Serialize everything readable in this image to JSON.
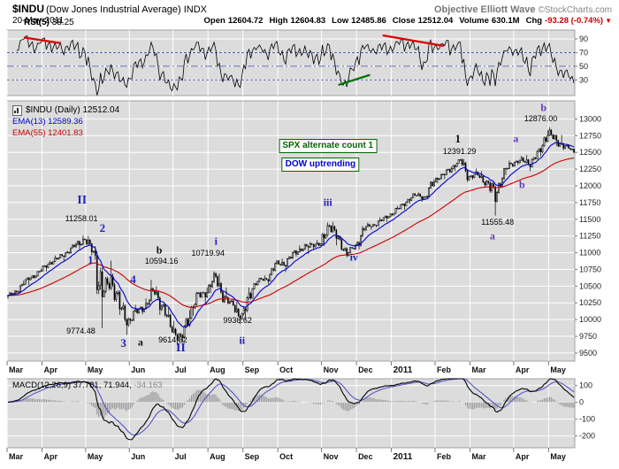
{
  "header": {
    "symbol": "$INDU",
    "symbol_desc": "(Dow Jones Industrial Average) INDX",
    "watermark": "Objective Elliott Wave",
    "copyright": "©StockCharts.com",
    "date": "20-May-2011",
    "quote": [
      {
        "label": "Open",
        "value": "12604.72"
      },
      {
        "label": "High",
        "value": "12604.83"
      },
      {
        "label": "Low",
        "value": "12485.86"
      },
      {
        "label": "Close",
        "value": "12512.04"
      },
      {
        "label": "Volume",
        "value": "630.1M"
      },
      {
        "label": "Chg",
        "value": "-93.28 (-0.74%)",
        "negative": true
      }
    ],
    "chg_arrow": "▼"
  },
  "rsi_panel": {
    "legend_name": "RSI(5)",
    "legend_value": "38.25"
  },
  "main_panel": {
    "legend_symbol": "$INDU (Daily) 12512.04",
    "legend_ema13": "EMA(13) 12589.36",
    "legend_ema55": "EMA(55) 12401.83"
  },
  "macd_panel": {
    "legend": "MACD(12,26,9) 37.781, 71.944,",
    "legend_hist": "-34.163"
  },
  "chart_data": {
    "type": "candlestick",
    "title": "$INDU Daily candlesticks with EMA(13), EMA(55), RSI(5) and MACD(12,26,9)",
    "x_months": [
      "Mar",
      "Apr",
      "May",
      "Jun",
      "Jul",
      "Aug",
      "Sep",
      "Oct",
      "Nov",
      "Dec",
      "2011",
      "Feb",
      "Mar",
      "Apr",
      "May"
    ],
    "year_label_index": 10,
    "month_week_starts": [
      0,
      4,
      9,
      14,
      19,
      23,
      27,
      31,
      36,
      40,
      44,
      49,
      53,
      58,
      62
    ],
    "price_ticks": [
      9500,
      9750,
      10000,
      10250,
      10500,
      10750,
      11000,
      11250,
      11500,
      11750,
      12000,
      12250,
      12500,
      12750,
      13000
    ],
    "price_ylim": [
      9380,
      13270
    ],
    "rsi_period": 5,
    "rsi_ticks": [
      90,
      70,
      50,
      30
    ],
    "macd_params": "12,26,9",
    "macd_ticks": [
      100,
      0,
      -100,
      -200
    ],
    "colors": {
      "ema13": "#0000cc",
      "ema55": "#cc0000",
      "candle": "#000000",
      "macd_line": "#000000",
      "macd_signal": "#5555cc",
      "histogram": "#999999",
      "panel_bg": "#dcdcdc",
      "grid": "#ffffff",
      "rsi_line": "#000000",
      "level_line": "#3344aa",
      "neg_red": "#cc0000"
    },
    "weekly_ohlc": [
      [
        10350,
        10440,
        10310,
        10400
      ],
      [
        10400,
        10580,
        10390,
        10560
      ],
      [
        10560,
        10660,
        10520,
        10640
      ],
      [
        10640,
        10760,
        10610,
        10740
      ],
      [
        10740,
        10880,
        10720,
        10850
      ],
      [
        10850,
        10960,
        10820,
        10920
      ],
      [
        10920,
        11030,
        10880,
        11010
      ],
      [
        11010,
        11150,
        10980,
        11120
      ],
      [
        11120,
        11258,
        11050,
        11200
      ],
      [
        11200,
        11250,
        10960,
        11010
      ],
      [
        11010,
        11100,
        9870,
        10380
      ],
      [
        10380,
        10880,
        10350,
        10620
      ],
      [
        10620,
        10690,
        10070,
        10190
      ],
      [
        10190,
        10260,
        9774,
        9974
      ],
      [
        9974,
        10220,
        9930,
        10130
      ],
      [
        10130,
        10320,
        10080,
        10210
      ],
      [
        10210,
        10594,
        10190,
        10450
      ],
      [
        10450,
        10500,
        10070,
        10140
      ],
      [
        10140,
        10180,
        9810,
        9870
      ],
      [
        9870,
        9980,
        9614,
        9690
      ],
      [
        9690,
        10140,
        9660,
        10100
      ],
      [
        10100,
        10410,
        10060,
        10360
      ],
      [
        10360,
        10480,
        10220,
        10420
      ],
      [
        10420,
        10720,
        10400,
        10650
      ],
      [
        10650,
        10690,
        10250,
        10300
      ],
      [
        10300,
        10480,
        10210,
        10210
      ],
      [
        10210,
        10260,
        9936,
        10010
      ],
      [
        10010,
        10480,
        9990,
        10450
      ],
      [
        10450,
        10620,
        10400,
        10600
      ],
      [
        10600,
        10660,
        10530,
        10610
      ],
      [
        10610,
        10880,
        10580,
        10860
      ],
      [
        10860,
        10910,
        10710,
        10830
      ],
      [
        10830,
        11030,
        10800,
        11010
      ],
      [
        11010,
        11110,
        10940,
        11060
      ],
      [
        11060,
        11160,
        10980,
        11130
      ],
      [
        11130,
        11190,
        11040,
        11120
      ],
      [
        11120,
        11451,
        11100,
        11440
      ],
      [
        11440,
        11460,
        11110,
        11190
      ],
      [
        11190,
        11240,
        10930,
        11000
      ],
      [
        11000,
        11130,
        10960,
        11090
      ],
      [
        11090,
        11400,
        11050,
        11380
      ],
      [
        11380,
        11450,
        11340,
        11410
      ],
      [
        11410,
        11530,
        11380,
        11490
      ],
      [
        11490,
        11590,
        11460,
        11570
      ],
      [
        11570,
        11700,
        11550,
        11670
      ],
      [
        11670,
        11800,
        11640,
        11790
      ],
      [
        11790,
        11890,
        11730,
        11870
      ],
      [
        11870,
        11900,
        11760,
        11820
      ],
      [
        11820,
        12100,
        11800,
        12090
      ],
      [
        12090,
        12180,
        12040,
        12160
      ],
      [
        12160,
        12290,
        12100,
        12270
      ],
      [
        12270,
        12391,
        12220,
        12390
      ],
      [
        12390,
        12400,
        12060,
        12130
      ],
      [
        12130,
        12260,
        12090,
        12170
      ],
      [
        12170,
        12220,
        11980,
        12040
      ],
      [
        12040,
        12080,
        11555,
        11860
      ],
      [
        11860,
        12260,
        11840,
        12220
      ],
      [
        12220,
        12380,
        12160,
        12350
      ],
      [
        12350,
        12450,
        12310,
        12380
      ],
      [
        12380,
        12460,
        12220,
        12340
      ],
      [
        12340,
        12560,
        12300,
        12500
      ],
      [
        12500,
        12830,
        12440,
        12810
      ],
      [
        12810,
        12876,
        12600,
        12660
      ],
      [
        12660,
        12760,
        12530,
        12595
      ],
      [
        12595,
        12605,
        12486,
        12512
      ]
    ],
    "annotations": {
      "elliott_labels": [
        {
          "text": "II",
          "t": 0.132,
          "price": 11780,
          "color": "#2222bb",
          "size": 14
        },
        {
          "text": "2",
          "t": 0.168,
          "price": 11360,
          "color": "#2222bb",
          "size": 13
        },
        {
          "text": "1",
          "t": 0.147,
          "price": 10890,
          "color": "#2222bb",
          "size": 13
        },
        {
          "text": "4",
          "t": 0.222,
          "price": 10600,
          "color": "#2222bb",
          "size": 13
        },
        {
          "text": "3",
          "t": 0.205,
          "price": 9640,
          "color": "#2222bb",
          "size": 13
        },
        {
          "text": "a",
          "t": 0.235,
          "price": 9660,
          "color": "#111111",
          "size": 12
        },
        {
          "text": "b",
          "t": 0.268,
          "price": 11040,
          "color": "#111111",
          "size": 12
        },
        {
          "text": "II",
          "t": 0.306,
          "price": 9560,
          "color": "#2222bb",
          "size": 14
        },
        {
          "text": "i",
          "t": 0.368,
          "price": 11170,
          "color": "#2222bb",
          "size": 12
        },
        {
          "text": "ii",
          "t": 0.414,
          "price": 9690,
          "color": "#2222bb",
          "size": 12
        },
        {
          "text": "iii",
          "t": 0.565,
          "price": 11750,
          "color": "#2222bb",
          "size": 12
        },
        {
          "text": "iv",
          "t": 0.611,
          "price": 10930,
          "color": "#2222bb",
          "size": 12
        },
        {
          "text": "1",
          "t": 0.794,
          "price": 12700,
          "color": "#111111",
          "size": 13
        },
        {
          "text": "a",
          "t": 0.896,
          "price": 12700,
          "color": "#6633bb",
          "size": 12
        },
        {
          "text": "b",
          "t": 0.945,
          "price": 13160,
          "color": "#6633bb",
          "size": 12
        },
        {
          "text": "b",
          "t": 0.907,
          "price": 12010,
          "color": "#6633bb",
          "size": 12
        },
        {
          "text": "a",
          "t": 0.855,
          "price": 11240,
          "color": "#6633bb",
          "size": 12
        }
      ],
      "price_labels": [
        {
          "text": "11258.01",
          "t": 0.131,
          "price": 11510
        },
        {
          "text": "10594.16",
          "t": 0.272,
          "price": 10880
        },
        {
          "text": "9774.48",
          "t": 0.13,
          "price": 9830
        },
        {
          "text": "9614.32",
          "t": 0.292,
          "price": 9700
        },
        {
          "text": "10719.94",
          "t": 0.354,
          "price": 10990
        },
        {
          "text": "9936.62",
          "t": 0.406,
          "price": 9985
        },
        {
          "text": "12391.29",
          "t": 0.797,
          "price": 12520
        },
        {
          "text": "11555.48",
          "t": 0.864,
          "price": 11460
        },
        {
          "text": "12876.00",
          "t": 0.94,
          "price": 13010
        }
      ],
      "callout_boxes": [
        {
          "text": "SPX alternate count 1",
          "t": 0.565,
          "price": 12600,
          "text_color": "#006600",
          "border_color": "#006600"
        },
        {
          "text": "DOW uptrending",
          "t": 0.552,
          "price": 12320,
          "text_color": "#0000cc",
          "border_color": "#006600"
        }
      ],
      "rsi_trendlines": [
        {
          "t1": 0.031,
          "v1": 92,
          "t2": 0.093,
          "v2": 84,
          "color": "#dd0000"
        },
        {
          "t1": 0.663,
          "v1": 95,
          "t2": 0.768,
          "v2": 80,
          "color": "#dd0000"
        },
        {
          "t1": 0.585,
          "v1": 23,
          "t2": 0.638,
          "v2": 37,
          "color": "#007700"
        }
      ]
    },
    "last_values": {
      "close": 12512.04,
      "rsi5": 38.25,
      "ema13": 12589.36,
      "ema55": 12401.83,
      "macd": [
        37.781,
        71.944,
        -34.163
      ]
    }
  }
}
